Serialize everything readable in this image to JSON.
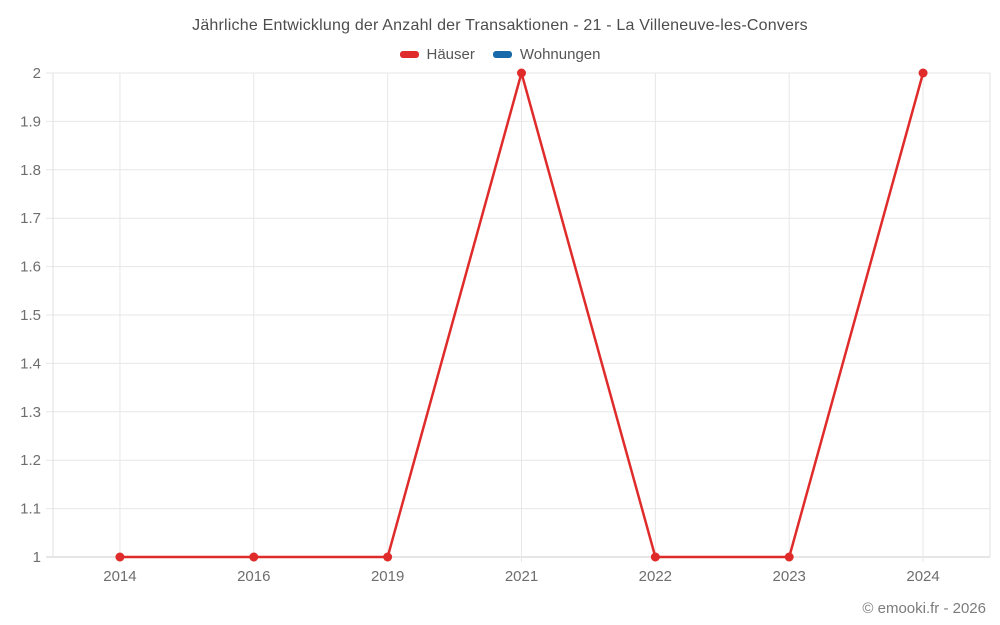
{
  "chart_data": {
    "type": "line",
    "title": "Jährliche Entwicklung der Anzahl der Transaktionen - 21 - La Villeneuve-les-Convers",
    "categories": [
      "2014",
      "2016",
      "2019",
      "2021",
      "2022",
      "2023",
      "2024"
    ],
    "series": [
      {
        "name": "Häuser",
        "color": "#e02b2b",
        "values": [
          1,
          1,
          1,
          2,
          1,
          1,
          2
        ]
      },
      {
        "name": "Wohnungen",
        "color": "#1769aa",
        "values": []
      }
    ],
    "xlabel": "",
    "ylabel": "",
    "ylim": [
      1,
      2
    ],
    "ytick_step": 0.1,
    "ytick_labels": [
      "1",
      "1.1",
      "1.2",
      "1.3",
      "1.4",
      "1.5",
      "1.6",
      "1.7",
      "1.8",
      "1.9",
      "2"
    ],
    "grid": true,
    "legend_position": "top"
  },
  "footer": {
    "copyright": "© emooki.fr - 2026"
  },
  "style": {
    "grid_color": "#e7e7e7",
    "border_color": "#e0e0e0",
    "axis_color": "#cccccc",
    "tick_text_color": "#6e6e6e"
  }
}
